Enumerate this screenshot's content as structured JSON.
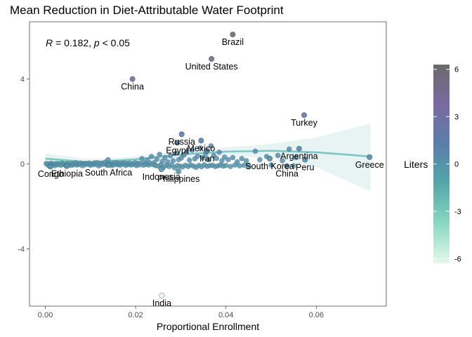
{
  "chart_data": {
    "type": "scatter",
    "title": "Mean Reduction in Diet-Attributable Water Footprint",
    "xlabel": "Proportional Enrollment",
    "ylabel": "",
    "xlim": [
      -0.0035,
      0.0755
    ],
    "ylim": [
      -6.7,
      6.7
    ],
    "x_ticks": [
      "0.00",
      "0.02",
      "0.04",
      "0.06"
    ],
    "x_tick_values": [
      0,
      0.02,
      0.04,
      0.06
    ],
    "y_ticks": [
      "-4",
      "0",
      "4"
    ],
    "y_tick_values": [
      -4,
      0,
      4
    ],
    "grid": false,
    "annotation": {
      "r_symbol": "R",
      "r_text": " = 0.182, ",
      "p_symbol": "p",
      "p_text": " < 0.05"
    },
    "legend": {
      "title": "Liters",
      "position": "right",
      "ticks": [
        "6",
        "3",
        "0",
        "-3",
        "-6"
      ],
      "tick_values": [
        6,
        3,
        0,
        -3,
        -6
      ],
      "range": [
        -6.3,
        6.3
      ],
      "colors": [
        "#e6f7ec",
        "#8ad8c2",
        "#55a7a9",
        "#5a7eaa",
        "#7a6aa0",
        "#6a6a6a"
      ]
    },
    "smooth_color": "#7ec6c4",
    "smooth_band_color": "#dff0ef",
    "smooth_line": [
      [
        0.0,
        0.25
      ],
      [
        0.01,
        0.08
      ],
      [
        0.02,
        0.22
      ],
      [
        0.03,
        0.45
      ],
      [
        0.04,
        0.58
      ],
      [
        0.05,
        0.62
      ],
      [
        0.06,
        0.55
      ],
      [
        0.072,
        0.35
      ]
    ],
    "smooth_band": {
      "upper": [
        [
          0.0,
          0.5
        ],
        [
          0.01,
          0.22
        ],
        [
          0.02,
          0.36
        ],
        [
          0.03,
          0.62
        ],
        [
          0.04,
          0.78
        ],
        [
          0.05,
          0.95
        ],
        [
          0.06,
          1.25
        ],
        [
          0.072,
          1.9
        ]
      ],
      "lower": [
        [
          0.0,
          0.0
        ],
        [
          0.01,
          -0.06
        ],
        [
          0.02,
          0.08
        ],
        [
          0.03,
          0.28
        ],
        [
          0.04,
          0.38
        ],
        [
          0.05,
          0.29
        ],
        [
          0.06,
          -0.15
        ],
        [
          0.072,
          -1.3
        ]
      ]
    },
    "labeled_points": [
      {
        "label": "Brazil",
        "x": 0.0415,
        "y": 6.1
      },
      {
        "label": "United States",
        "x": 0.0368,
        "y": 4.95
      },
      {
        "label": "China",
        "x": 0.0193,
        "y": 4.0
      },
      {
        "label": "Turkey",
        "x": 0.0573,
        "y": 2.3
      },
      {
        "label": "Russia",
        "x": 0.0302,
        "y": 1.4
      },
      {
        "label": "Mexico",
        "x": 0.0345,
        "y": 1.1
      },
      {
        "label": "Egypt",
        "x": 0.0292,
        "y": 1.0
      },
      {
        "label": "Iran",
        "x": 0.0358,
        "y": 0.62
      },
      {
        "label": "Argentina",
        "x": 0.0562,
        "y": 0.72
      },
      {
        "label": "Greece",
        "x": 0.0718,
        "y": 0.32
      },
      {
        "label": "South Korea",
        "x": 0.0497,
        "y": 0.25
      },
      {
        "label": "Peru",
        "x": 0.0575,
        "y": 0.2
      },
      {
        "label": "China",
        "x": 0.0535,
        "y": -0.1
      },
      {
        "label": "South Africa",
        "x": 0.014,
        "y": -0.05
      },
      {
        "label": "Philippines",
        "x": 0.0295,
        "y": -0.35
      },
      {
        "label": "Indonesia",
        "x": 0.0257,
        "y": -0.25
      },
      {
        "label": "Congo",
        "x": 0.0012,
        "y": -0.12
      },
      {
        "label": "Ethiopia",
        "x": 0.0048,
        "y": -0.1
      },
      {
        "label": "India",
        "x": 0.0258,
        "y": -6.2
      }
    ],
    "points": [
      [
        0.0002,
        0.02
      ],
      [
        0.0005,
        -0.05
      ],
      [
        0.0008,
        0.01
      ],
      [
        0.001,
        -0.12
      ],
      [
        0.0013,
        0.03
      ],
      [
        0.0016,
        -0.04
      ],
      [
        0.0019,
        0.0
      ],
      [
        0.0022,
        -0.08
      ],
      [
        0.0025,
        0.02
      ],
      [
        0.0028,
        -0.03
      ],
      [
        0.0031,
        0.01
      ],
      [
        0.0034,
        -0.06
      ],
      [
        0.0037,
        0.04
      ],
      [
        0.004,
        -0.02
      ],
      [
        0.0043,
        0.0
      ],
      [
        0.0046,
        -0.1
      ],
      [
        0.0049,
        0.03
      ],
      [
        0.0052,
        -0.04
      ],
      [
        0.0055,
        0.01
      ],
      [
        0.0058,
        -0.07
      ],
      [
        0.0061,
        0.02
      ],
      [
        0.0064,
        -0.03
      ],
      [
        0.0067,
        0.05
      ],
      [
        0.007,
        -0.05
      ],
      [
        0.0073,
        0.0
      ],
      [
        0.0076,
        -0.02
      ],
      [
        0.0079,
        0.03
      ],
      [
        0.0082,
        -0.08
      ],
      [
        0.0085,
        0.01
      ],
      [
        0.0088,
        -0.04
      ],
      [
        0.0091,
        0.02
      ],
      [
        0.0094,
        -0.01
      ],
      [
        0.0097,
        0.04
      ],
      [
        0.01,
        -0.06
      ],
      [
        0.0103,
        0.0
      ],
      [
        0.0106,
        -0.03
      ],
      [
        0.0109,
        0.05
      ],
      [
        0.0112,
        -0.02
      ],
      [
        0.0115,
        0.06
      ],
      [
        0.0118,
        -0.09
      ],
      [
        0.0121,
        0.02
      ],
      [
        0.0124,
        -0.04
      ],
      [
        0.0127,
        0.03
      ],
      [
        0.013,
        -0.01
      ],
      [
        0.0133,
        0.08
      ],
      [
        0.0136,
        -0.05
      ],
      [
        0.0139,
        0.2
      ],
      [
        0.0142,
        -0.03
      ],
      [
        0.0145,
        0.01
      ],
      [
        0.0148,
        -0.08
      ],
      [
        0.0151,
        0.04
      ],
      [
        0.0154,
        -0.02
      ],
      [
        0.0157,
        0.06
      ],
      [
        0.016,
        -0.04
      ],
      [
        0.0163,
        0.02
      ],
      [
        0.0166,
        -0.06
      ],
      [
        0.0169,
        0.03
      ],
      [
        0.0172,
        -0.01
      ],
      [
        0.0175,
        0.05
      ],
      [
        0.0178,
        -0.07
      ],
      [
        0.0181,
        0.02
      ],
      [
        0.0184,
        -0.03
      ],
      [
        0.0187,
        0.04
      ],
      [
        0.019,
        -0.05
      ],
      [
        0.0193,
        0.01
      ],
      [
        0.0196,
        -0.02
      ],
      [
        0.0199,
        0.06
      ],
      [
        0.0202,
        -0.08
      ],
      [
        0.0205,
        0.03
      ],
      [
        0.0208,
        -0.04
      ],
      [
        0.0211,
        0.02
      ],
      [
        0.0214,
        0.25
      ],
      [
        0.0217,
        -0.06
      ],
      [
        0.022,
        0.05
      ],
      [
        0.0223,
        -0.02
      ],
      [
        0.0226,
        0.18
      ],
      [
        0.0229,
        -0.05
      ],
      [
        0.0232,
        0.04
      ],
      [
        0.0235,
        0.35
      ],
      [
        0.0238,
        -0.03
      ],
      [
        0.0241,
        0.06
      ],
      [
        0.0244,
        -0.08
      ],
      [
        0.0247,
        0.22
      ],
      [
        0.025,
        -0.1
      ],
      [
        0.0253,
        0.45
      ],
      [
        0.0256,
        -0.04
      ],
      [
        0.0259,
        0.12
      ],
      [
        0.0262,
        -0.15
      ],
      [
        0.0265,
        0.3
      ],
      [
        0.0268,
        -0.06
      ],
      [
        0.0271,
        0.1
      ],
      [
        0.0274,
        -0.12
      ],
      [
        0.0277,
        0.38
      ],
      [
        0.028,
        -0.05
      ],
      [
        0.0283,
        0.15
      ],
      [
        0.0286,
        -0.18
      ],
      [
        0.0289,
        0.5
      ],
      [
        0.0292,
        -0.08
      ],
      [
        0.0295,
        0.2
      ],
      [
        0.0298,
        -0.1
      ],
      [
        0.0301,
        0.28
      ],
      [
        0.0304,
        -0.14
      ],
      [
        0.0307,
        0.42
      ],
      [
        0.031,
        -0.06
      ],
      [
        0.0313,
        0.55
      ],
      [
        0.0316,
        -0.12
      ],
      [
        0.0319,
        0.18
      ],
      [
        0.0322,
        -0.05
      ],
      [
        0.0325,
        0.65
      ],
      [
        0.0328,
        -0.1
      ],
      [
        0.0331,
        0.24
      ],
      [
        0.0334,
        -0.16
      ],
      [
        0.0337,
        0.36
      ],
      [
        0.034,
        -0.07
      ],
      [
        0.0343,
        0.75
      ],
      [
        0.0346,
        -0.13
      ],
      [
        0.0349,
        0.3
      ],
      [
        0.0352,
        -0.04
      ],
      [
        0.0355,
        0.48
      ],
      [
        0.0358,
        -0.11
      ],
      [
        0.0361,
        0.2
      ],
      [
        0.0364,
        -0.08
      ],
      [
        0.0367,
        0.85
      ],
      [
        0.037,
        -0.06
      ],
      [
        0.0373,
        0.4
      ],
      [
        0.0376,
        -0.12
      ],
      [
        0.0379,
        0.26
      ],
      [
        0.0382,
        -0.09
      ],
      [
        0.0385,
        0.55
      ],
      [
        0.0388,
        -0.05
      ],
      [
        0.0391,
        0.15
      ],
      [
        0.0394,
        -0.1
      ],
      [
        0.0397,
        0.32
      ],
      [
        0.04,
        -0.07
      ],
      [
        0.0405,
        0.2
      ],
      [
        0.041,
        -0.12
      ],
      [
        0.0415,
        0.3
      ],
      [
        0.042,
        -0.05
      ],
      [
        0.0425,
        0.1
      ],
      [
        0.043,
        -0.09
      ],
      [
        0.0435,
        0.25
      ],
      [
        0.044,
        -0.06
      ],
      [
        0.0445,
        0.15
      ],
      [
        0.045,
        -0.1
      ],
      [
        0.0465,
        0.6
      ],
      [
        0.0475,
        0.2
      ],
      [
        0.049,
        0.35
      ],
      [
        0.05,
        -0.05
      ],
      [
        0.0515,
        0.4
      ],
      [
        0.0525,
        0.15
      ],
      [
        0.054,
        0.7
      ],
      [
        0.055,
        -0.08
      ],
      [
        0.0555,
        0.3
      ]
    ]
  }
}
